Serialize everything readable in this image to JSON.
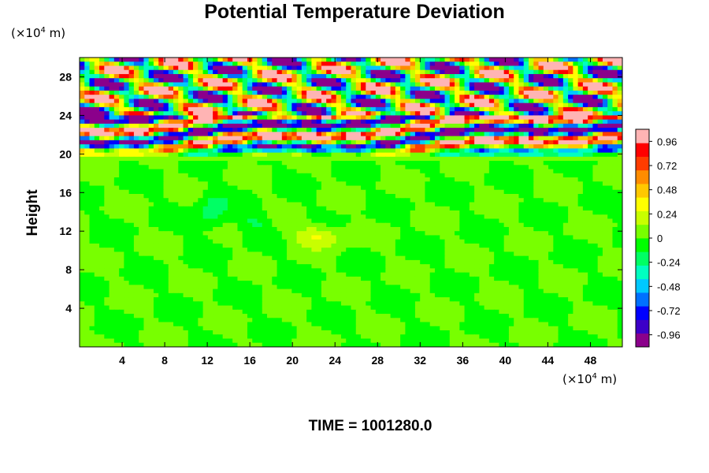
{
  "chart_data": {
    "type": "heatmap",
    "title": "Potential Temperature Deviation",
    "xlabel": "",
    "ylabel": "Height",
    "x_unit_prefix": "(×10",
    "x_unit_exp": "4",
    "x_unit_suffix": " m)",
    "y_unit_prefix": "(×10",
    "y_unit_exp": "4",
    "y_unit_suffix": " m)",
    "xlim": [
      0,
      51
    ],
    "ylim": [
      0,
      30
    ],
    "x_ticks": [
      4,
      8,
      12,
      16,
      20,
      24,
      28,
      32,
      36,
      40,
      44,
      48
    ],
    "y_ticks": [
      4,
      8,
      12,
      16,
      20,
      24,
      28
    ],
    "colorbar": {
      "range": [
        -1.08,
        1.08
      ],
      "tick_values": [
        0.96,
        0.72,
        0.48,
        0.24,
        0,
        -0.24,
        -0.48,
        -0.72,
        -0.96
      ],
      "tick_labels": [
        "0.96",
        "0.72",
        "0.48",
        "0.24",
        "0",
        "-0.24",
        "-0.48",
        "-0.72",
        "-0.96"
      ],
      "colors": [
        "#8b008b",
        "#3c00c8",
        "#0000ff",
        "#0070ff",
        "#00c8ff",
        "#00ffc0",
        "#00ff64",
        "#00ff00",
        "#78ff00",
        "#c8ff00",
        "#ffff00",
        "#ffc800",
        "#ff8c00",
        "#ff3c00",
        "#ff0000",
        "#ffb4b4"
      ]
    },
    "field_summary": {
      "lower_region_y": [
        0,
        20
      ],
      "lower_value": 0,
      "upper_region_y": [
        20,
        30
      ],
      "upper_pattern": "banded oscillations of amplitude about 1",
      "warm_anomaly": {
        "x": 22.5,
        "y": 11.5,
        "value": 0.3
      }
    },
    "legend": "colorbar-right"
  },
  "footer": {
    "time_label": "TIME = 1001280.0"
  }
}
